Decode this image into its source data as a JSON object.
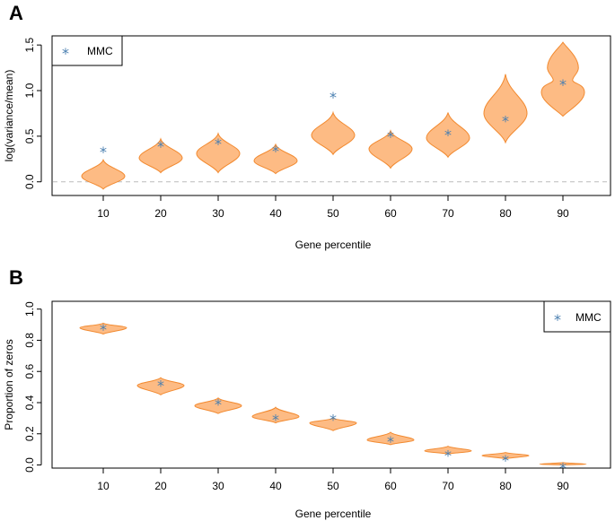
{
  "chart_data": [
    {
      "panel": "A",
      "type": "violin",
      "xlabel": "Gene percentile",
      "ylabel": "log(variance/mean)",
      "categories": [
        "10",
        "20",
        "30",
        "40",
        "50",
        "60",
        "70",
        "80",
        "90"
      ],
      "ylim": [
        -0.15,
        1.6
      ],
      "yticks": [
        0.0,
        0.5,
        1.0,
        1.5
      ],
      "ytick_labels": [
        "0.0",
        "0.5",
        "1.0",
        "1.5"
      ],
      "reference_line": 0.0,
      "legend": {
        "label": "MMC",
        "marker": "*",
        "position": "top-left"
      },
      "violins": [
        {
          "min": -0.08,
          "max": 0.24,
          "mode": 0.06
        },
        {
          "min": 0.1,
          "max": 0.47,
          "mode": 0.26
        },
        {
          "min": 0.1,
          "max": 0.53,
          "mode": 0.31
        },
        {
          "min": 0.09,
          "max": 0.41,
          "mode": 0.23
        },
        {
          "min": 0.3,
          "max": 0.76,
          "mode": 0.51
        },
        {
          "min": 0.15,
          "max": 0.56,
          "mode": 0.36
        },
        {
          "min": 0.27,
          "max": 0.76,
          "mode": 0.48
        },
        {
          "min": 0.43,
          "max": 1.18,
          "mode": 0.75
        },
        {
          "min": 0.72,
          "max": 1.53,
          "mode": 0.98,
          "mode2": 1.25
        }
      ],
      "series": [
        {
          "name": "MMC",
          "values": [
            0.36,
            0.42,
            0.45,
            0.37,
            0.96,
            0.53,
            0.55,
            0.7,
            1.1
          ]
        }
      ]
    },
    {
      "panel": "B",
      "type": "violin",
      "xlabel": "Gene percentile",
      "ylabel": "Proportion of zeros",
      "categories": [
        "10",
        "20",
        "30",
        "40",
        "50",
        "60",
        "70",
        "80",
        "90"
      ],
      "ylim": [
        -0.02,
        1.05
      ],
      "yticks": [
        0.0,
        0.2,
        0.4,
        0.6,
        0.8,
        1.0
      ],
      "ytick_labels": [
        "0.0",
        "0.2",
        "0.4",
        "0.6",
        "0.8",
        "1.0"
      ],
      "legend": {
        "label": "MMC",
        "marker": "*",
        "position": "top-right"
      },
      "violins": [
        {
          "min": 0.84,
          "max": 0.91,
          "mode": 0.88
        },
        {
          "min": 0.45,
          "max": 0.56,
          "mode": 0.51
        },
        {
          "min": 0.33,
          "max": 0.43,
          "mode": 0.38
        },
        {
          "min": 0.27,
          "max": 0.37,
          "mode": 0.31
        },
        {
          "min": 0.22,
          "max": 0.3,
          "mode": 0.27
        },
        {
          "min": 0.13,
          "max": 0.21,
          "mode": 0.16
        },
        {
          "min": 0.07,
          "max": 0.12,
          "mode": 0.09
        },
        {
          "min": 0.04,
          "max": 0.08,
          "mode": 0.06
        },
        {
          "min": 0.0,
          "max": 0.015,
          "mode": 0.005
        }
      ],
      "series": [
        {
          "name": "MMC",
          "values": [
            0.89,
            0.53,
            0.41,
            0.31,
            0.31,
            0.17,
            0.08,
            0.05,
            0.0
          ]
        }
      ]
    }
  ],
  "colors": {
    "violin_fill": "#FDBB84",
    "violin_stroke": "#F28A30",
    "mmc_marker": "#4A7FB0",
    "reference_line": "#BBBBBB"
  },
  "marker_glyph": "*"
}
